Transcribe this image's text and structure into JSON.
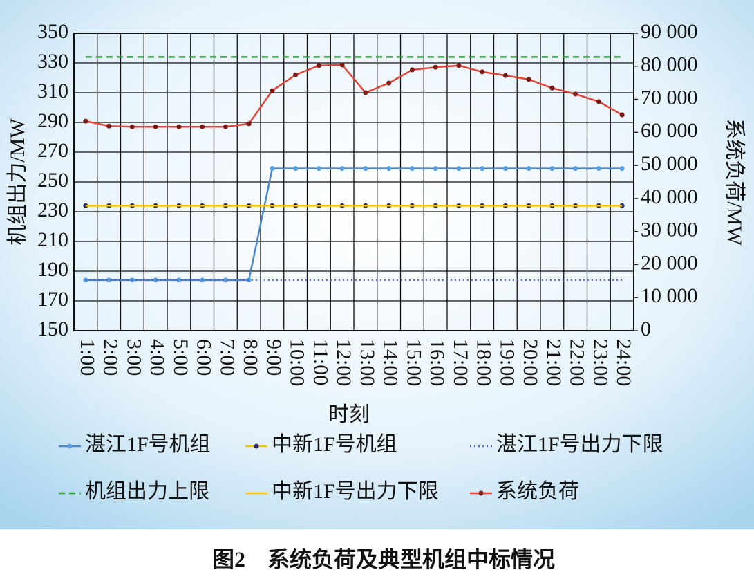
{
  "chart_data": {
    "type": "line",
    "caption": "图2　系统负荷及典型机组中标情况",
    "xlabel": "时刻",
    "ylabel": "机组出力/MW",
    "y2label": "系统负荷/MW",
    "categories": [
      "1:00",
      "2:00",
      "3:00",
      "4:00",
      "5:00",
      "6:00",
      "7:00",
      "8:00",
      "9:00",
      "10:00",
      "11:00",
      "12:00",
      "13:00",
      "14:00",
      "15:00",
      "16:00",
      "17:00",
      "18:00",
      "19:00",
      "20:00",
      "21:00",
      "22:00",
      "23:00",
      "24:00"
    ],
    "ylim": [
      150,
      350
    ],
    "yticks": [
      150,
      170,
      190,
      210,
      230,
      250,
      270,
      290,
      310,
      330,
      350
    ],
    "y2lim": [
      0,
      90000
    ],
    "y2ticks": [
      0,
      {
        "value": 10000,
        "label": "10 000"
      },
      {
        "value": 20000,
        "label": "20 000"
      },
      {
        "value": 30000,
        "label": "30 000"
      },
      {
        "value": 40000,
        "label": "40 000"
      },
      {
        "value": 50000,
        "label": "50 000"
      },
      {
        "value": 60000,
        "label": "60 000"
      },
      {
        "value": 70000,
        "label": "70 000"
      },
      {
        "value": 80000,
        "label": "80 000"
      },
      {
        "value": 90000,
        "label": "90 000"
      }
    ],
    "grid": true,
    "series": [
      {
        "name": "湛江1F号机组",
        "color": "#4f86c6",
        "marker_color": "#5aa0dc",
        "style": "solid",
        "markers": true,
        "values": [
          184,
          184,
          184,
          184,
          184,
          184,
          184,
          184,
          259,
          259,
          259,
          259,
          259,
          259,
          259,
          259,
          259,
          259,
          259,
          259,
          259,
          259,
          259,
          259
        ]
      },
      {
        "name": "中新1F号机组",
        "color": "#f0c419",
        "marker_color": "#2a2a6a",
        "style": "solid",
        "markers": true,
        "values": [
          234,
          234,
          234,
          234,
          234,
          234,
          234,
          234,
          234,
          234,
          234,
          234,
          234,
          234,
          234,
          234,
          234,
          234,
          234,
          234,
          234,
          234,
          234,
          234
        ]
      },
      {
        "name": "湛江1F号出力下限",
        "color": "#4a5fc0",
        "style": "dotted",
        "markers": false,
        "values": [
          184,
          184,
          184,
          184,
          184,
          184,
          184,
          184,
          184,
          184,
          184,
          184,
          184,
          184,
          184,
          184,
          184,
          184,
          184,
          184,
          184,
          184,
          184,
          184
        ]
      },
      {
        "name": "机组出力上限",
        "color": "#2e9a3e",
        "style": "dashed",
        "markers": false,
        "values": [
          334,
          334,
          334,
          334,
          334,
          334,
          334,
          334,
          334,
          334,
          334,
          334,
          334,
          334,
          334,
          334,
          334,
          334,
          334,
          334,
          334,
          334,
          334,
          334
        ]
      },
      {
        "name": "中新1F号出力下限",
        "color": "#f0c419",
        "style": "solid",
        "markers": false,
        "values": [
          234,
          234,
          234,
          234,
          234,
          234,
          234,
          234,
          234,
          234,
          234,
          234,
          234,
          234,
          234,
          234,
          234,
          234,
          234,
          234,
          234,
          234,
          234,
          234
        ]
      },
      {
        "name": "系统负荷",
        "color": "#e0453a",
        "marker_color": "#7a1a14",
        "style": "solid",
        "markers": true,
        "axis": "y2",
        "values": [
          63400,
          61900,
          61700,
          61700,
          61700,
          61700,
          61700,
          62600,
          72600,
          77400,
          80200,
          80400,
          72000,
          74900,
          78900,
          79700,
          80200,
          78300,
          77200,
          76000,
          73400,
          71600,
          69300,
          65300
        ]
      }
    ]
  }
}
